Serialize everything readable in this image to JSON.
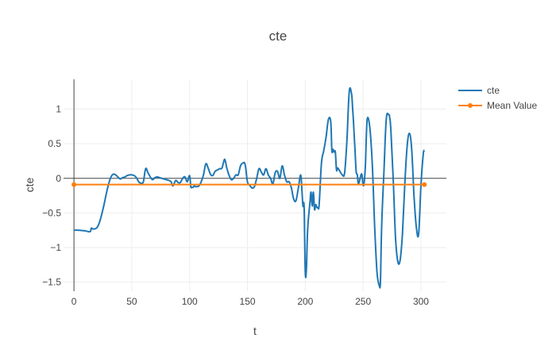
{
  "chart_data": {
    "type": "line",
    "title": "cte",
    "xlabel": "t",
    "ylabel": "cte",
    "xlim": [
      -9,
      322
    ],
    "ylim": [
      -1.63,
      1.43
    ],
    "x_ticks": [
      0,
      50,
      100,
      150,
      200,
      250,
      300
    ],
    "y_ticks": [
      -1.5,
      -1,
      -0.5,
      0,
      0.5,
      1
    ],
    "x_tick_labels": [
      "0",
      "50",
      "100",
      "150",
      "200",
      "250",
      "300"
    ],
    "y_tick_labels": [
      "−1.5",
      "−1",
      "−0.5",
      "0",
      "0.5",
      "1"
    ],
    "grid": true,
    "legend_position": "top-right",
    "colors": {
      "cte": "#1f77b4",
      "mean": "#ff7f0e",
      "grid": "#eeeeee",
      "zeroline": "#444444",
      "text": "#444444"
    },
    "series": [
      {
        "name": "cte",
        "x": [
          0,
          5,
          10,
          14,
          15,
          16,
          18,
          20,
          22,
          24,
          26,
          28,
          30,
          32,
          34,
          36,
          38,
          40,
          42,
          44,
          46,
          48,
          50,
          52,
          54,
          56,
          58,
          60,
          62,
          64,
          66,
          68,
          70,
          72,
          74,
          76,
          78,
          80,
          82,
          84,
          85,
          86,
          88,
          90,
          92,
          94,
          96,
          98,
          100,
          101,
          102,
          103,
          104,
          105,
          106,
          108,
          110,
          112,
          114,
          116,
          118,
          120,
          122,
          124,
          126,
          128,
          130,
          131,
          132,
          133,
          134,
          136,
          138,
          140,
          142,
          144,
          146,
          148,
          150,
          152,
          154,
          156,
          158,
          160,
          162,
          164,
          166,
          168,
          170,
          172,
          174,
          176,
          178,
          180,
          182,
          184,
          186,
          188,
          190,
          192,
          194,
          196,
          197,
          198,
          199,
          200,
          201,
          202,
          204,
          205,
          206,
          207,
          208,
          209,
          210,
          211,
          212,
          214,
          216,
          218,
          220,
          222,
          223,
          224,
          225,
          226,
          227,
          228,
          230,
          232,
          234,
          236,
          238,
          240,
          241,
          242,
          243,
          244,
          245,
          246,
          248,
          249,
          250,
          251,
          252,
          253,
          254,
          256,
          258,
          260,
          262,
          264,
          265,
          266,
          268,
          270,
          272,
          273,
          274,
          276,
          278,
          280,
          282,
          284,
          286,
          288,
          290,
          292,
          294,
          296,
          298,
          300,
          302,
          303
        ],
        "values": [
          -0.75,
          -0.75,
          -0.76,
          -0.77,
          -0.72,
          -0.73,
          -0.73,
          -0.71,
          -0.64,
          -0.52,
          -0.38,
          -0.22,
          -0.08,
          0.02,
          0.06,
          0.05,
          0.02,
          -0.01,
          0.01,
          0.02,
          0.04,
          0.05,
          0.05,
          0.04,
          0.01,
          -0.05,
          -0.07,
          -0.05,
          0.14,
          0.08,
          0.02,
          -0.02,
          0.01,
          0.02,
          0.01,
          0.0,
          -0.01,
          -0.02,
          -0.03,
          -0.05,
          -0.1,
          -0.1,
          -0.03,
          -0.06,
          -0.06,
          0.0,
          0.02,
          -0.05,
          0.04,
          -0.12,
          -0.13,
          -0.13,
          -0.11,
          -0.12,
          -0.12,
          -0.11,
          -0.05,
          0.05,
          0.21,
          0.15,
          0.06,
          0.04,
          0.1,
          0.12,
          0.14,
          0.15,
          0.27,
          0.24,
          0.16,
          0.1,
          0.05,
          -0.02,
          0.0,
          0.05,
          0.05,
          0.18,
          0.22,
          0.2,
          -0.05,
          -0.1,
          -0.14,
          -0.12,
          0.0,
          0.14,
          0.09,
          0.05,
          0.14,
          0.05,
          0.0,
          -0.08,
          0.08,
          0.1,
          0.0,
          0.18,
          0.05,
          -0.05,
          -0.05,
          -0.14,
          -0.3,
          -0.32,
          -0.14,
          0.05,
          -0.15,
          -0.4,
          -0.42,
          -1.35,
          -1.3,
          -0.75,
          -0.35,
          -0.2,
          -0.4,
          -0.2,
          -0.45,
          -0.38,
          -0.42,
          -0.42,
          -0.38,
          0.22,
          0.4,
          0.6,
          0.85,
          0.82,
          0.4,
          0.42,
          0.38,
          0.38,
          0.12,
          0.15,
          0.1,
          0.05,
          0.08,
          0.55,
          1.25,
          1.22,
          1.0,
          0.72,
          0.4,
          0.1,
          0.05,
          -0.08,
          0.04,
          0.05,
          -0.1,
          -0.05,
          0.2,
          0.7,
          0.88,
          0.7,
          0.18,
          -0.7,
          -1.35,
          -1.55,
          -1.48,
          -0.7,
          0.1,
          0.85,
          0.92,
          0.88,
          0.7,
          0.0,
          -0.85,
          -1.2,
          -1.18,
          -0.8,
          -0.1,
          0.45,
          0.65,
          0.42,
          -0.25,
          -0.7,
          -0.8,
          -0.1,
          0.35,
          0.4
        ]
      },
      {
        "name": "Mean Value",
        "x": [
          0,
          303
        ],
        "values": [
          -0.09,
          -0.09
        ]
      }
    ]
  }
}
